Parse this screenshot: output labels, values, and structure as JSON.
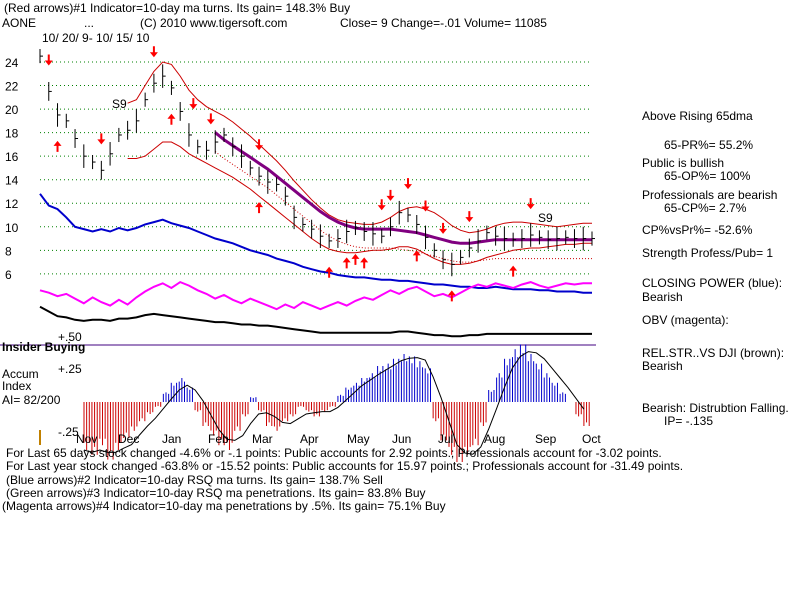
{
  "header": {
    "line1": "(Red arrows)#1 Indicator=10-day ma turns. Its gain= 148.3% Buy",
    "ticker": "AONE",
    "dots": "...",
    "copyright": "(C) 2010 www.tigersoft.com",
    "close": "Close=  9  Change=-.01 Volume= 11085",
    "date_range": "10/ 20/ 9- 10/ 15/ 10"
  },
  "side_panel": {
    "above_ma": "Above Rising 65dma",
    "pr": "65-PR%= 55.2%",
    "public": "Public is bullish",
    "op": "65-OP%= 100%",
    "professionals": "Professionals are bearish",
    "cp": "65-CP%= 2.7%",
    "cpvspr": "CP%vsPr%= -52.6%",
    "strength": "Strength Profess/Pub= 1",
    "closing_power_label": "CLOSING POWER (blue):",
    "closing_power_value": "Bearish",
    "obv_label": "OBV (magenta):",
    "relstr_label": "REL.STR..VS DJI (brown):",
    "relstr_value": "Bearish",
    "accum_status": "Bearish: Distrubtion Falling.",
    "ip": "IP= -.135"
  },
  "footer": {
    "line1": "For Last 65 days stock changed -4.6% or -.1 points:  Public accounts for  2.92 points.;  Professionals account for -3.02 points.",
    "line2": "For Last year stock changed -63.8% or -15.52 points:  Public accounts for  15.97 points.;  Professionals account for -31.49 points.",
    "line3": "(Blue arrows)#2 Indicator=10-day RSQ ma turns. Its gain= 138.7% Sell",
    "line4": "(Green arrows)#3 Indicator=10-day RSQ ma penetrations. Its gain= 83.8% Buy",
    "line5": "(Magenta arrows)#4 Indicator=10-day ma penetrations by .5%. Its gain= 75.1% Buy"
  },
  "lower_panel": {
    "insider": "Insider Buying",
    "accum": "Accum",
    "index": "Index",
    "ai": "AI= 82/200",
    "plus50": "+.50",
    "plus25": "+.25",
    "minus25": "-.25"
  },
  "colors": {
    "price": "#000000",
    "bands": "#cc0000",
    "ma65": "#800080",
    "closing_power": "#0000cc",
    "obv": "#ff00ff",
    "relstr": "#000000",
    "grid": "#008000",
    "accum_pos": "#0000cc",
    "accum_neg": "#cc0000",
    "arrow": "#ff0000",
    "insider_line": "#400080"
  },
  "chart_data": {
    "type": "line",
    "ylim": [
      6,
      24
    ],
    "yticks": [
      "24",
      "22",
      "20",
      "18",
      "16",
      "14",
      "12",
      "10",
      "8",
      "6"
    ],
    "month_labels": [
      "Nov",
      "Dec",
      "Jan",
      "Feb",
      "Mar",
      "Apr",
      "May",
      "Jun",
      "Jul",
      "Aug",
      "Sep",
      "Oct"
    ],
    "s9_labels": [
      "S9",
      "S9"
    ],
    "price_x": [
      0,
      4,
      8,
      12,
      16,
      20,
      24,
      28,
      32,
      36,
      40,
      44,
      48,
      52,
      56,
      60,
      64,
      68,
      72,
      76,
      80,
      84,
      88,
      92,
      96,
      100,
      104,
      108,
      112,
      116,
      120,
      124,
      128,
      132,
      136,
      140,
      144,
      148,
      152,
      156,
      160,
      164,
      168,
      172,
      176,
      180,
      184,
      188,
      192,
      196,
      200,
      204,
      208,
      212,
      216,
      220,
      224,
      228,
      232,
      236,
      240,
      244,
      248,
      252
    ],
    "price_y": [
      24.5,
      21.5,
      19.5,
      19.0,
      17.5,
      16.0,
      15.5,
      14.8,
      16.2,
      17.8,
      18.2,
      19.0,
      20.8,
      22.2,
      22.8,
      21.8,
      19.8,
      17.8,
      16.8,
      16.5,
      17.2,
      17.8,
      16.8,
      16.0,
      15.0,
      14.3,
      13.8,
      13.6,
      12.6,
      10.8,
      10.2,
      9.8,
      9.2,
      8.8,
      9.0,
      9.6,
      9.9,
      9.6,
      9.4,
      9.2,
      10.0,
      11.2,
      11.0,
      10.2,
      9.1,
      8.0,
      7.2,
      6.8,
      7.4,
      8.2,
      8.8,
      9.5,
      9.2,
      9.0,
      8.9,
      9.0,
      9.3,
      9.1,
      8.9,
      9.0,
      9.1,
      9.0,
      9.0,
      9.0
    ],
    "ma65_y": [
      null,
      null,
      null,
      null,
      null,
      null,
      null,
      null,
      null,
      null,
      null,
      null,
      null,
      null,
      null,
      null,
      null,
      null,
      null,
      null,
      18.0,
      17.4,
      16.9,
      16.4,
      15.9,
      15.4,
      14.9,
      14.3,
      13.7,
      13.1,
      12.5,
      11.9,
      11.3,
      10.8,
      10.4,
      10.1,
      9.9,
      9.8,
      9.8,
      9.8,
      9.8,
      9.7,
      9.6,
      9.5,
      9.3,
      9.1,
      8.9,
      8.7,
      8.6,
      8.6,
      8.7,
      8.8,
      8.9,
      8.9,
      8.9,
      8.9,
      8.9,
      8.9,
      8.9,
      8.9,
      8.9,
      8.9,
      8.9,
      8.9
    ],
    "upper_band_y": [
      null,
      null,
      null,
      null,
      null,
      null,
      null,
      null,
      null,
      null,
      20.5,
      20.8,
      22.0,
      23.2,
      24.0,
      23.8,
      22.8,
      21.6,
      20.8,
      20.2,
      19.8,
      19.4,
      18.9,
      18.3,
      17.7,
      17.0,
      16.3,
      15.6,
      14.8,
      13.9,
      13.1,
      12.3,
      11.6,
      11.0,
      10.6,
      10.4,
      10.3,
      10.2,
      10.2,
      10.4,
      10.8,
      11.3,
      11.6,
      11.7,
      11.5,
      11.2,
      10.7,
      10.1,
      9.7,
      9.5,
      9.6,
      9.8,
      10.1,
      10.3,
      10.4,
      10.4,
      10.3,
      10.2,
      10.1,
      10.0,
      10.1,
      10.2,
      10.3,
      10.3
    ],
    "lower_band_y": [
      null,
      null,
      null,
      null,
      null,
      null,
      null,
      null,
      null,
      null,
      15.8,
      15.8,
      16.0,
      16.6,
      17.2,
      17.2,
      16.8,
      16.2,
      15.8,
      15.4,
      15.0,
      14.6,
      14.2,
      13.7,
      13.2,
      12.6,
      12.0,
      11.4,
      10.8,
      10.2,
      9.6,
      9.0,
      8.5,
      8.1,
      7.9,
      7.8,
      7.8,
      7.9,
      8.0,
      8.0,
      8.1,
      8.3,
      8.3,
      8.1,
      7.7,
      7.3,
      7.0,
      6.8,
      6.8,
      6.9,
      7.1,
      7.4,
      7.6,
      7.8,
      8.0,
      8.1,
      8.2,
      8.2,
      8.3,
      8.4,
      8.5,
      8.5,
      8.6,
      8.6
    ],
    "cp_y": [
      12.8,
      11.8,
      11.5,
      10.8,
      10.0,
      9.8,
      9.6,
      9.8,
      9.6,
      9.9,
      9.7,
      9.9,
      10.2,
      10.4,
      10.6,
      10.3,
      10.1,
      9.9,
      9.6,
      9.3,
      9.0,
      8.8,
      8.6,
      8.3,
      8.0,
      7.8,
      7.6,
      7.3,
      7.1,
      6.9,
      6.6,
      6.4,
      6.2,
      6.1,
      5.9,
      5.8,
      5.7,
      5.7,
      5.6,
      5.5,
      5.5,
      5.4,
      5.4,
      5.3,
      5.2,
      5.1,
      5.1,
      5.0,
      4.9,
      4.9,
      4.8,
      4.8,
      4.9,
      4.8,
      4.7,
      4.7,
      4.7,
      4.6,
      4.6,
      4.5,
      4.5,
      4.5,
      4.4,
      4.4
    ],
    "obv_y": [
      4.6,
      4.4,
      4.1,
      4.3,
      3.9,
      3.5,
      4.0,
      3.6,
      3.3,
      3.8,
      3.4,
      4.0,
      4.5,
      4.9,
      5.2,
      4.8,
      5.3,
      5.0,
      4.6,
      4.3,
      3.9,
      4.2,
      3.8,
      3.5,
      3.9,
      3.6,
      3.3,
      3.0,
      3.4,
      3.1,
      3.6,
      3.3,
      3.0,
      3.3,
      3.6,
      3.3,
      3.7,
      4.0,
      3.8,
      4.2,
      4.6,
      4.3,
      4.7,
      4.9,
      4.5,
      4.1,
      4.3,
      4.0,
      4.4,
      4.8,
      5.1,
      4.9,
      5.2,
      5.0,
      4.8,
      5.1,
      5.3,
      5.0,
      4.8,
      5.0,
      5.2,
      5.1,
      5.2,
      5.2
    ],
    "relstr_y": [
      3.2,
      2.8,
      2.4,
      2.3,
      2.1,
      2.0,
      2.1,
      2.1,
      2.0,
      2.2,
      2.2,
      2.3,
      2.5,
      2.6,
      2.5,
      2.4,
      2.3,
      2.2,
      2.1,
      2.0,
      1.9,
      1.9,
      1.8,
      1.7,
      1.7,
      1.6,
      1.6,
      1.5,
      1.4,
      1.3,
      1.2,
      1.1,
      1.0,
      1.0,
      1.0,
      1.0,
      1.0,
      1.0,
      1.0,
      1.0,
      1.0,
      1.1,
      1.1,
      1.0,
      0.9,
      0.8,
      0.8,
      0.7,
      0.7,
      0.8,
      0.8,
      0.9,
      0.9,
      0.9,
      0.9,
      0.9,
      0.9,
      0.9,
      0.9,
      0.9,
      0.9,
      0.9,
      0.9,
      0.9
    ],
    "accum_values": [
      -0.2,
      -0.22,
      -0.18,
      -0.24,
      -0.2,
      -0.15,
      -0.12,
      -0.08,
      -0.05,
      -0.02,
      0.04,
      0.08,
      0.1,
      0.06,
      -0.04,
      -0.1,
      -0.14,
      -0.18,
      -0.2,
      -0.12,
      -0.06,
      0.02,
      -0.04,
      -0.1,
      -0.12,
      -0.08,
      -0.06,
      -0.02,
      -0.04,
      -0.06,
      -0.04,
      -0.02,
      0.03,
      0.06,
      0.08,
      0.1,
      0.12,
      0.15,
      0.16,
      0.18,
      0.2,
      0.19,
      0.17,
      0.14,
      -0.08,
      -0.16,
      -0.22,
      -0.25,
      -0.22,
      -0.18,
      -0.1,
      0.05,
      0.12,
      0.18,
      0.22,
      0.24,
      0.2,
      0.16,
      0.12,
      0.08,
      0.04,
      0.0,
      -0.06,
      -0.1
    ],
    "accum_ylim": [
      -0.25,
      0.25
    ],
    "up_arrows_x": [
      8,
      60,
      100,
      132,
      140,
      144,
      148,
      172,
      188,
      216
    ],
    "down_arrows_x": [
      4,
      28,
      52,
      70,
      78,
      100,
      156,
      160,
      168,
      176,
      184,
      196,
      224
    ],
    "grid": true
  }
}
